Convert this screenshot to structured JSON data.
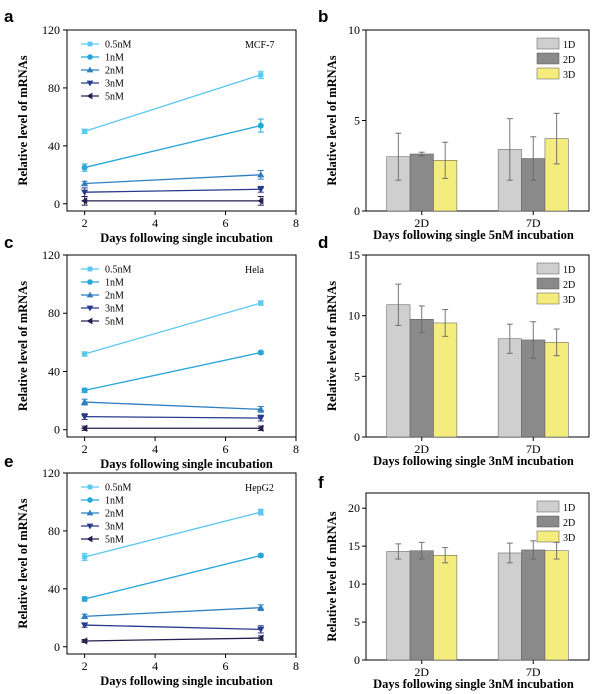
{
  "chart_data": [
    {
      "panel": "a",
      "type": "line",
      "annotation": "MCF-7",
      "xlabel": "Days following single incubation",
      "ylabel": "Relative level of mRNAs",
      "xlim": [
        1.5,
        8
      ],
      "ylim": [
        -5,
        120
      ],
      "xticks": [
        2,
        4,
        6,
        8
      ],
      "yticks": [
        0,
        40,
        80,
        120
      ],
      "x": [
        2,
        7
      ],
      "legend_position": "top-left",
      "series": [
        {
          "name": "0.5nM",
          "color": "#5bc8f0",
          "marker": "square",
          "values": [
            50,
            89
          ],
          "errors": [
            1.5,
            2.5
          ]
        },
        {
          "name": "1nM",
          "color": "#27a6d8",
          "marker": "circle",
          "values": [
            25,
            54
          ],
          "errors": [
            2.5,
            4.5
          ]
        },
        {
          "name": "2nM",
          "color": "#2f7fc0",
          "marker": "triangle-up",
          "values": [
            14,
            20
          ],
          "errors": [
            1.5,
            3
          ]
        },
        {
          "name": "3nM",
          "color": "#283a8e",
          "marker": "triangle-down",
          "values": [
            8,
            10
          ],
          "errors": [
            3,
            2
          ]
        },
        {
          "name": "5nM",
          "color": "#252050",
          "marker": "triangle-left",
          "values": [
            2,
            2
          ],
          "errors": [
            3,
            3
          ]
        }
      ]
    },
    {
      "panel": "b",
      "type": "bar",
      "xlabel": "Days following single 5nM incubation",
      "ylabel": "Relative level of mRNAs",
      "ylim": [
        0,
        10
      ],
      "yticks": [
        0,
        5,
        10
      ],
      "categories": [
        "2D",
        "7D"
      ],
      "legend_position": "top-right",
      "series": [
        {
          "name": "1D",
          "color": "#cfcfcf",
          "values": [
            3.0,
            3.4
          ],
          "errors": [
            1.3,
            1.7
          ]
        },
        {
          "name": "2D",
          "color": "#8a8a8a",
          "values": [
            3.15,
            2.9
          ],
          "errors": [
            0.1,
            1.2
          ]
        },
        {
          "name": "3D",
          "color": "#f4ec7c",
          "values": [
            2.8,
            4.0
          ],
          "errors": [
            1.0,
            1.4
          ]
        }
      ]
    },
    {
      "panel": "c",
      "type": "line",
      "annotation": "Hela",
      "xlabel": "Days following single incubation",
      "ylabel": "Relative level of mRNAs",
      "xlim": [
        1.5,
        8
      ],
      "ylim": [
        -5,
        120
      ],
      "xticks": [
        2,
        4,
        6,
        8
      ],
      "yticks": [
        0,
        40,
        80,
        120
      ],
      "x": [
        2,
        7
      ],
      "legend_position": "top-left",
      "series": [
        {
          "name": "0.5nM",
          "color": "#5bc8f0",
          "marker": "square",
          "values": [
            52,
            87
          ],
          "errors": [
            1.5,
            1.5
          ]
        },
        {
          "name": "1nM",
          "color": "#27a6d8",
          "marker": "circle",
          "values": [
            27,
            53
          ],
          "errors": [
            1.5,
            1
          ]
        },
        {
          "name": "2nM",
          "color": "#2f7fc0",
          "marker": "triangle-up",
          "values": [
            19,
            14
          ],
          "errors": [
            2,
            2
          ]
        },
        {
          "name": "3nM",
          "color": "#283a8e",
          "marker": "triangle-down",
          "values": [
            9,
            8
          ],
          "errors": [
            2,
            2
          ]
        },
        {
          "name": "5nM",
          "color": "#252050",
          "marker": "triangle-left",
          "values": [
            1,
            1
          ],
          "errors": [
            1.5,
            1.5
          ]
        }
      ]
    },
    {
      "panel": "d",
      "type": "bar",
      "xlabel": "Days following single 3nM incubation",
      "ylabel": "Relative level of mRNAs",
      "ylim": [
        0,
        15
      ],
      "yticks": [
        0,
        5,
        10,
        15
      ],
      "categories": [
        "2D",
        "7D"
      ],
      "legend_position": "top-right",
      "series": [
        {
          "name": "1D",
          "color": "#cfcfcf",
          "values": [
            10.9,
            8.1
          ],
          "errors": [
            1.7,
            1.2
          ]
        },
        {
          "name": "2D",
          "color": "#8a8a8a",
          "values": [
            9.7,
            8.0
          ],
          "errors": [
            1.1,
            1.5
          ]
        },
        {
          "name": "3D",
          "color": "#f4ec7c",
          "values": [
            9.4,
            7.8
          ],
          "errors": [
            1.1,
            1.1
          ]
        }
      ]
    },
    {
      "panel": "e",
      "type": "line",
      "annotation": "HepG2",
      "xlabel": "Days following single incubation",
      "ylabel": "Relative level of mRNAs",
      "xlim": [
        1.5,
        8
      ],
      "ylim": [
        -5,
        120
      ],
      "xticks": [
        2,
        4,
        6,
        8
      ],
      "yticks": [
        0,
        40,
        80,
        120
      ],
      "x": [
        2,
        7
      ],
      "legend_position": "top-left",
      "series": [
        {
          "name": "0.5nM",
          "color": "#5bc8f0",
          "marker": "square",
          "values": [
            62,
            93
          ],
          "errors": [
            2.5,
            2
          ]
        },
        {
          "name": "1nM",
          "color": "#27a6d8",
          "marker": "circle",
          "values": [
            33,
            63
          ],
          "errors": [
            1.5,
            1
          ]
        },
        {
          "name": "2nM",
          "color": "#2f7fc0",
          "marker": "triangle-up",
          "values": [
            21,
            27
          ],
          "errors": [
            1.5,
            2
          ]
        },
        {
          "name": "3nM",
          "color": "#283a8e",
          "marker": "triangle-down",
          "values": [
            15,
            12
          ],
          "errors": [
            1.5,
            2.5
          ]
        },
        {
          "name": "5nM",
          "color": "#252050",
          "marker": "triangle-left",
          "values": [
            4,
            6
          ],
          "errors": [
            1,
            1.5
          ]
        }
      ]
    },
    {
      "panel": "f",
      "type": "bar",
      "xlabel": "Days following single 3nM incubation",
      "ylabel": "Relative level of mRNAs",
      "ylim": [
        0,
        22
      ],
      "yticks": [
        0,
        5,
        10,
        15,
        20
      ],
      "categories": [
        "2D",
        "7D"
      ],
      "legend_position": "top-right",
      "series": [
        {
          "name": "1D",
          "color": "#cfcfcf",
          "values": [
            14.3,
            14.1
          ],
          "errors": [
            1.0,
            1.3
          ]
        },
        {
          "name": "2D",
          "color": "#8a8a8a",
          "values": [
            14.4,
            14.5
          ],
          "errors": [
            1.1,
            1.2
          ]
        },
        {
          "name": "3D",
          "color": "#f4ec7c",
          "values": [
            13.8,
            14.4
          ],
          "errors": [
            1.0,
            1.1
          ]
        }
      ]
    }
  ]
}
